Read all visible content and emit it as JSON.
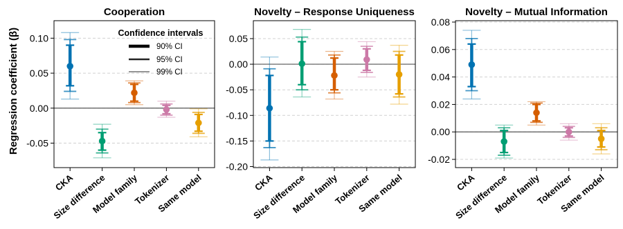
{
  "figure": {
    "ylabel": "Regression coefficient (β)",
    "legend": {
      "title": "Confidence intervals",
      "items": [
        "90% CI",
        "95% CI",
        "99% CI"
      ]
    }
  },
  "chart_data": [
    {
      "type": "errorbar",
      "title": "Cooperation",
      "categories": [
        "CKA",
        "Size difference",
        "Model family",
        "Tokenizer",
        "Same model"
      ],
      "colors": [
        "#0072b2",
        "#009e73",
        "#d55e00",
        "#cc79a7",
        "#e69f00"
      ],
      "estimate": [
        0.06,
        -0.047,
        0.022,
        -0.002,
        -0.021
      ],
      "ci90": [
        [
          0.032,
          0.09
        ],
        [
          -0.06,
          -0.035
        ],
        [
          0.01,
          0.034
        ],
        [
          -0.008,
          0.004
        ],
        [
          -0.033,
          -0.009
        ]
      ],
      "ci95": [
        [
          0.024,
          0.098
        ],
        [
          -0.064,
          -0.03
        ],
        [
          0.008,
          0.036
        ],
        [
          -0.01,
          0.006
        ],
        [
          -0.036,
          -0.006
        ]
      ],
      "ci99": [
        [
          0.013,
          0.108
        ],
        [
          -0.071,
          -0.023
        ],
        [
          0.005,
          0.039
        ],
        [
          -0.013,
          0.01
        ],
        [
          -0.041,
          -0.001
        ]
      ],
      "ylim": [
        -0.085,
        0.125
      ],
      "yticks": [
        -0.05,
        0.0,
        0.05,
        0.1
      ],
      "ytick_labels": [
        "-0.05",
        "0.00",
        "0.05",
        "0.10"
      ],
      "grid": true,
      "zero_line": true,
      "legend_position": "top-right"
    },
    {
      "type": "errorbar",
      "title": "Novelty – Response Uniqueness",
      "categories": [
        "CKA",
        "Size difference",
        "Model family",
        "Tokenizer",
        "Same model"
      ],
      "colors": [
        "#0072b2",
        "#009e73",
        "#d55e00",
        "#cc79a7",
        "#e69f00"
      ],
      "estimate": [
        -0.086,
        0.001,
        -0.022,
        0.009,
        -0.02
      ],
      "ci90": [
        [
          -0.15,
          -0.022
        ],
        [
          -0.04,
          0.044
        ],
        [
          -0.05,
          0.012
        ],
        [
          -0.012,
          0.03
        ],
        [
          -0.058,
          0.018
        ]
      ],
      "ci95": [
        [
          -0.163,
          -0.009
        ],
        [
          -0.05,
          0.053
        ],
        [
          -0.056,
          0.018
        ],
        [
          -0.016,
          0.035
        ],
        [
          -0.064,
          0.025
        ]
      ],
      "ci99": [
        [
          -0.187,
          0.014
        ],
        [
          -0.064,
          0.068
        ],
        [
          -0.068,
          0.025
        ],
        [
          -0.025,
          0.044
        ],
        [
          -0.078,
          0.037
        ]
      ],
      "ylim": [
        -0.202,
        0.085
      ],
      "yticks": [
        -0.2,
        -0.15,
        -0.1,
        -0.05,
        0.0,
        0.05
      ],
      "ytick_labels": [
        "-0.20",
        "-0.15",
        "-0.10",
        "-0.05",
        "0.00",
        "0.05"
      ],
      "grid": true,
      "zero_line": true
    },
    {
      "type": "errorbar",
      "title": "Novelty – Mutual Information",
      "categories": [
        "CKA",
        "Size difference",
        "Model family",
        "Tokenizer",
        "Same model"
      ],
      "colors": [
        "#0072b2",
        "#009e73",
        "#d55e00",
        "#cc79a7",
        "#e69f00"
      ],
      "estimate": [
        0.049,
        -0.007,
        0.014,
        0.0,
        -0.005
      ],
      "ci90": [
        [
          0.033,
          0.064
        ],
        [
          -0.015,
          0.001
        ],
        [
          0.008,
          0.02
        ],
        [
          -0.003,
          0.003
        ],
        [
          -0.011,
          0.001
        ]
      ],
      "ci95": [
        [
          0.03,
          0.068
        ],
        [
          -0.017,
          0.003
        ],
        [
          0.007,
          0.021
        ],
        [
          -0.004,
          0.004
        ],
        [
          -0.013,
          0.003
        ]
      ],
      "ci99": [
        [
          0.024,
          0.074
        ],
        [
          -0.019,
          0.005
        ],
        [
          0.005,
          0.022
        ],
        [
          -0.006,
          0.006
        ],
        [
          -0.016,
          0.006
        ]
      ],
      "ylim": [
        -0.026,
        0.081
      ],
      "yticks": [
        -0.02,
        0.0,
        0.02,
        0.04,
        0.06,
        0.08
      ],
      "ytick_labels": [
        "-0.02",
        "0.00",
        "0.02",
        "0.04",
        "0.06",
        "0.08"
      ],
      "grid": true,
      "zero_line": true
    }
  ]
}
